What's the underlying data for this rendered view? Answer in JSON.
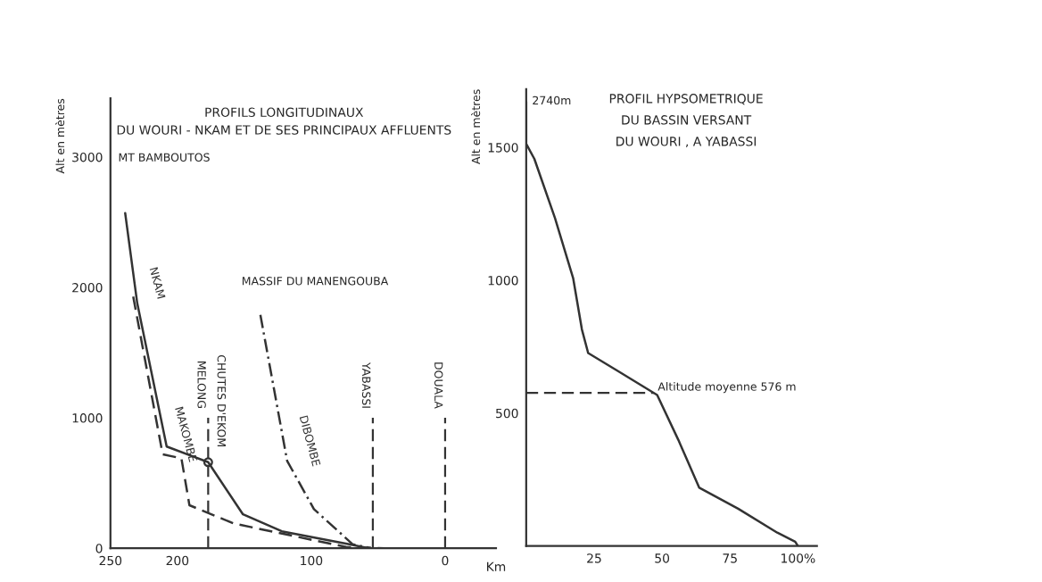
{
  "chart_data": [
    {
      "type": "line",
      "title": "PROFILS LONGITUDINAUX\nDU WOURI - NKAM ET DE SES PRINCIPAUX AFFLUENTS",
      "xlabel": "Km",
      "ylabel": "Alt en mètres",
      "xlim": [
        250,
        -38
      ],
      "xticks": [
        250,
        200,
        100,
        0
      ],
      "ylim": [
        0,
        3450
      ],
      "yticks": [
        0,
        1000,
        2000,
        3000
      ],
      "grid": false,
      "series": [
        {
          "name": "NKAM",
          "color": "#333333",
          "line_style": "solid",
          "x": [
            239,
            230,
            208,
            177,
            151,
            122,
            71.5,
            57
          ],
          "values": [
            2570,
            1880,
            780,
            660,
            260,
            130,
            30,
            0
          ]
        },
        {
          "name": "MAKOMBE",
          "color": "#333333",
          "line_style": "dashed",
          "x": [
            233,
            211,
            197,
            191,
            158,
            74,
            45
          ],
          "values": [
            1930,
            720,
            690,
            330,
            190,
            10,
            0
          ]
        },
        {
          "name": "DIBOMBE",
          "color": "#333333",
          "line_style": "dotted",
          "x": [
            138,
            118,
            98,
            69,
            55
          ],
          "values": [
            1790,
            670,
            300,
            30,
            0
          ]
        },
        {
          "type": "scatter",
          "color": "#333333",
          "marker": "circle",
          "x": [
            177
          ],
          "values": [
            660
          ]
        }
      ],
      "ref_lines": [
        {
          "axis": "x",
          "value": 177,
          "label": "MELONG",
          "line_style": "dashed",
          "color": "#333333"
        },
        {
          "axis": "x",
          "value": 54,
          "label": "YABASSI",
          "line_style": "dashed",
          "color": "#333333"
        },
        {
          "axis": "x",
          "value": 0,
          "label": "DOUALA",
          "line_style": "dashed",
          "color": "#333333"
        }
      ],
      "annotations": [
        "MT BAMBOUTOS",
        "MASSIF DU MANENGOUBA",
        {
          "text": "CHUTES D'EKOM",
          "x": 177,
          "y": 660
        }
      ]
    },
    {
      "type": "line",
      "title": "PROFIL HYPSOMETRIQUE\nDU BASSIN VERSANT\nDU WOURI , A YABASSI",
      "ylabel": "Alt en mètres",
      "xlim": [
        0,
        107
      ],
      "xticks": [
        25,
        50,
        75,
        {
          "value": 100,
          "label": "100%"
        }
      ],
      "ylim": [
        0,
        1720
      ],
      "yticks": [
        500,
        1000,
        1500
      ],
      "grid": false,
      "series": [
        {
          "color": "#333333",
          "line_style": "solid",
          "x": [
            0,
            0,
            3,
            10.6,
            17.3,
            20.5,
            22.8,
            33.8,
            48.2,
            56,
            63.7,
            78,
            92.4,
            99,
            100
          ],
          "values": [
            1673,
            1514,
            1457,
            1234,
            1007,
            815,
            726,
            658,
            568,
            399,
            219,
            140,
            50,
            16,
            0
          ]
        }
      ],
      "ref_lines": [
        {
          "axis": "y",
          "value": 576,
          "label": "Altitude moyenne 576 m",
          "line_style": "dashed",
          "color": "#333333"
        }
      ],
      "annotations": [
        "2740m"
      ]
    }
  ]
}
